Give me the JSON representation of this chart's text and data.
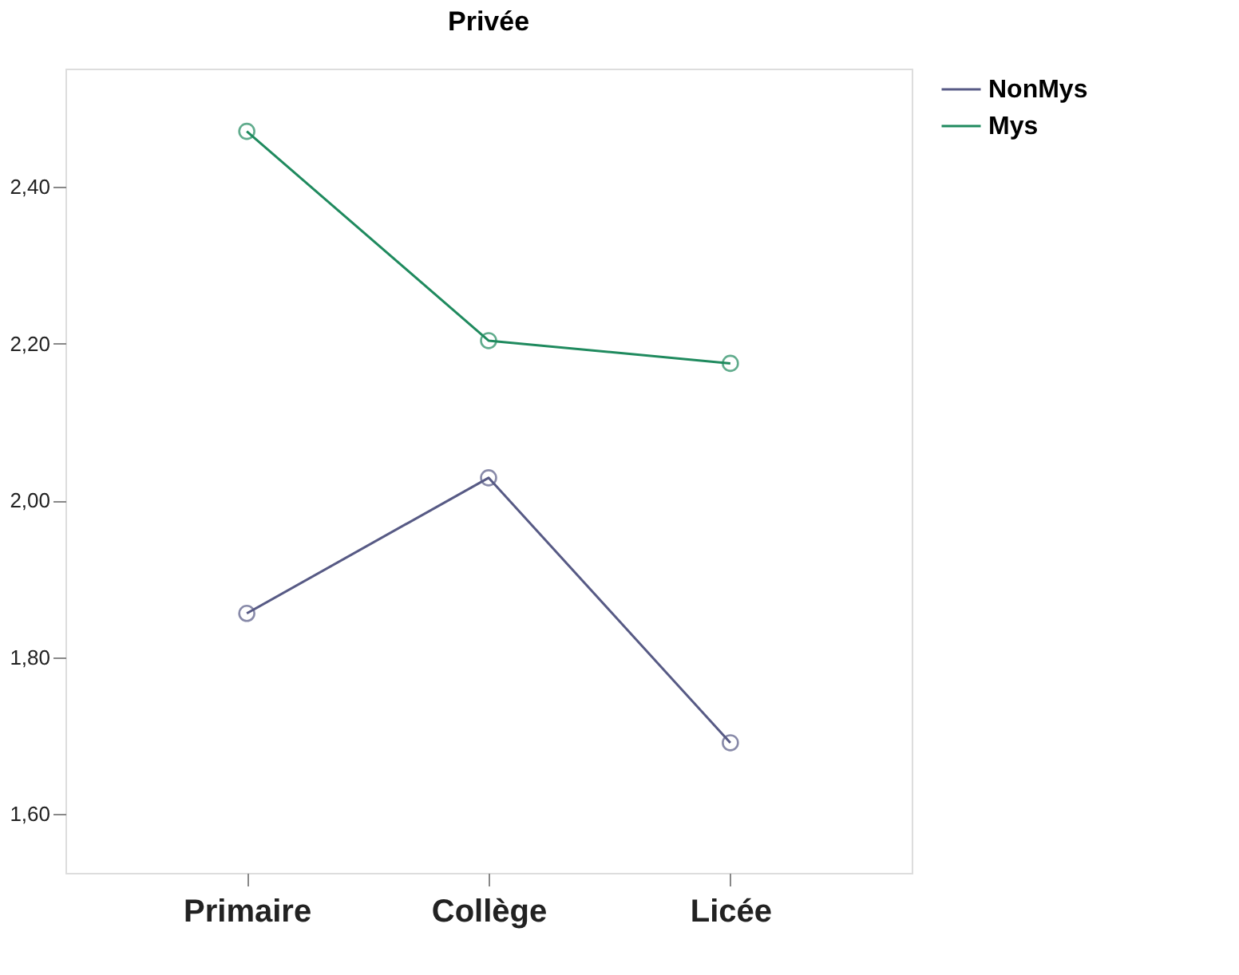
{
  "chart_data": {
    "type": "line",
    "title": "Privée",
    "categories": [
      "Primaire",
      "Collège",
      "Licée"
    ],
    "series": [
      {
        "name": "NonMys",
        "color": "#575a85",
        "values": [
          1.856,
          2.029,
          1.691
        ]
      },
      {
        "name": "Mys",
        "color": "#1f8a5e",
        "values": [
          2.471,
          2.204,
          2.175
        ]
      }
    ],
    "ylim": [
      1.525,
      2.551
    ],
    "yticks": [
      {
        "value": 1.6,
        "label": "1,60"
      },
      {
        "value": 1.8,
        "label": "1,80"
      },
      {
        "value": 2.0,
        "label": "2,00"
      },
      {
        "value": 2.2,
        "label": "2,20"
      },
      {
        "value": 2.4,
        "label": "2,40"
      }
    ],
    "grid": false,
    "legend": "top right",
    "marker": "circle",
    "line_style": "solid"
  }
}
